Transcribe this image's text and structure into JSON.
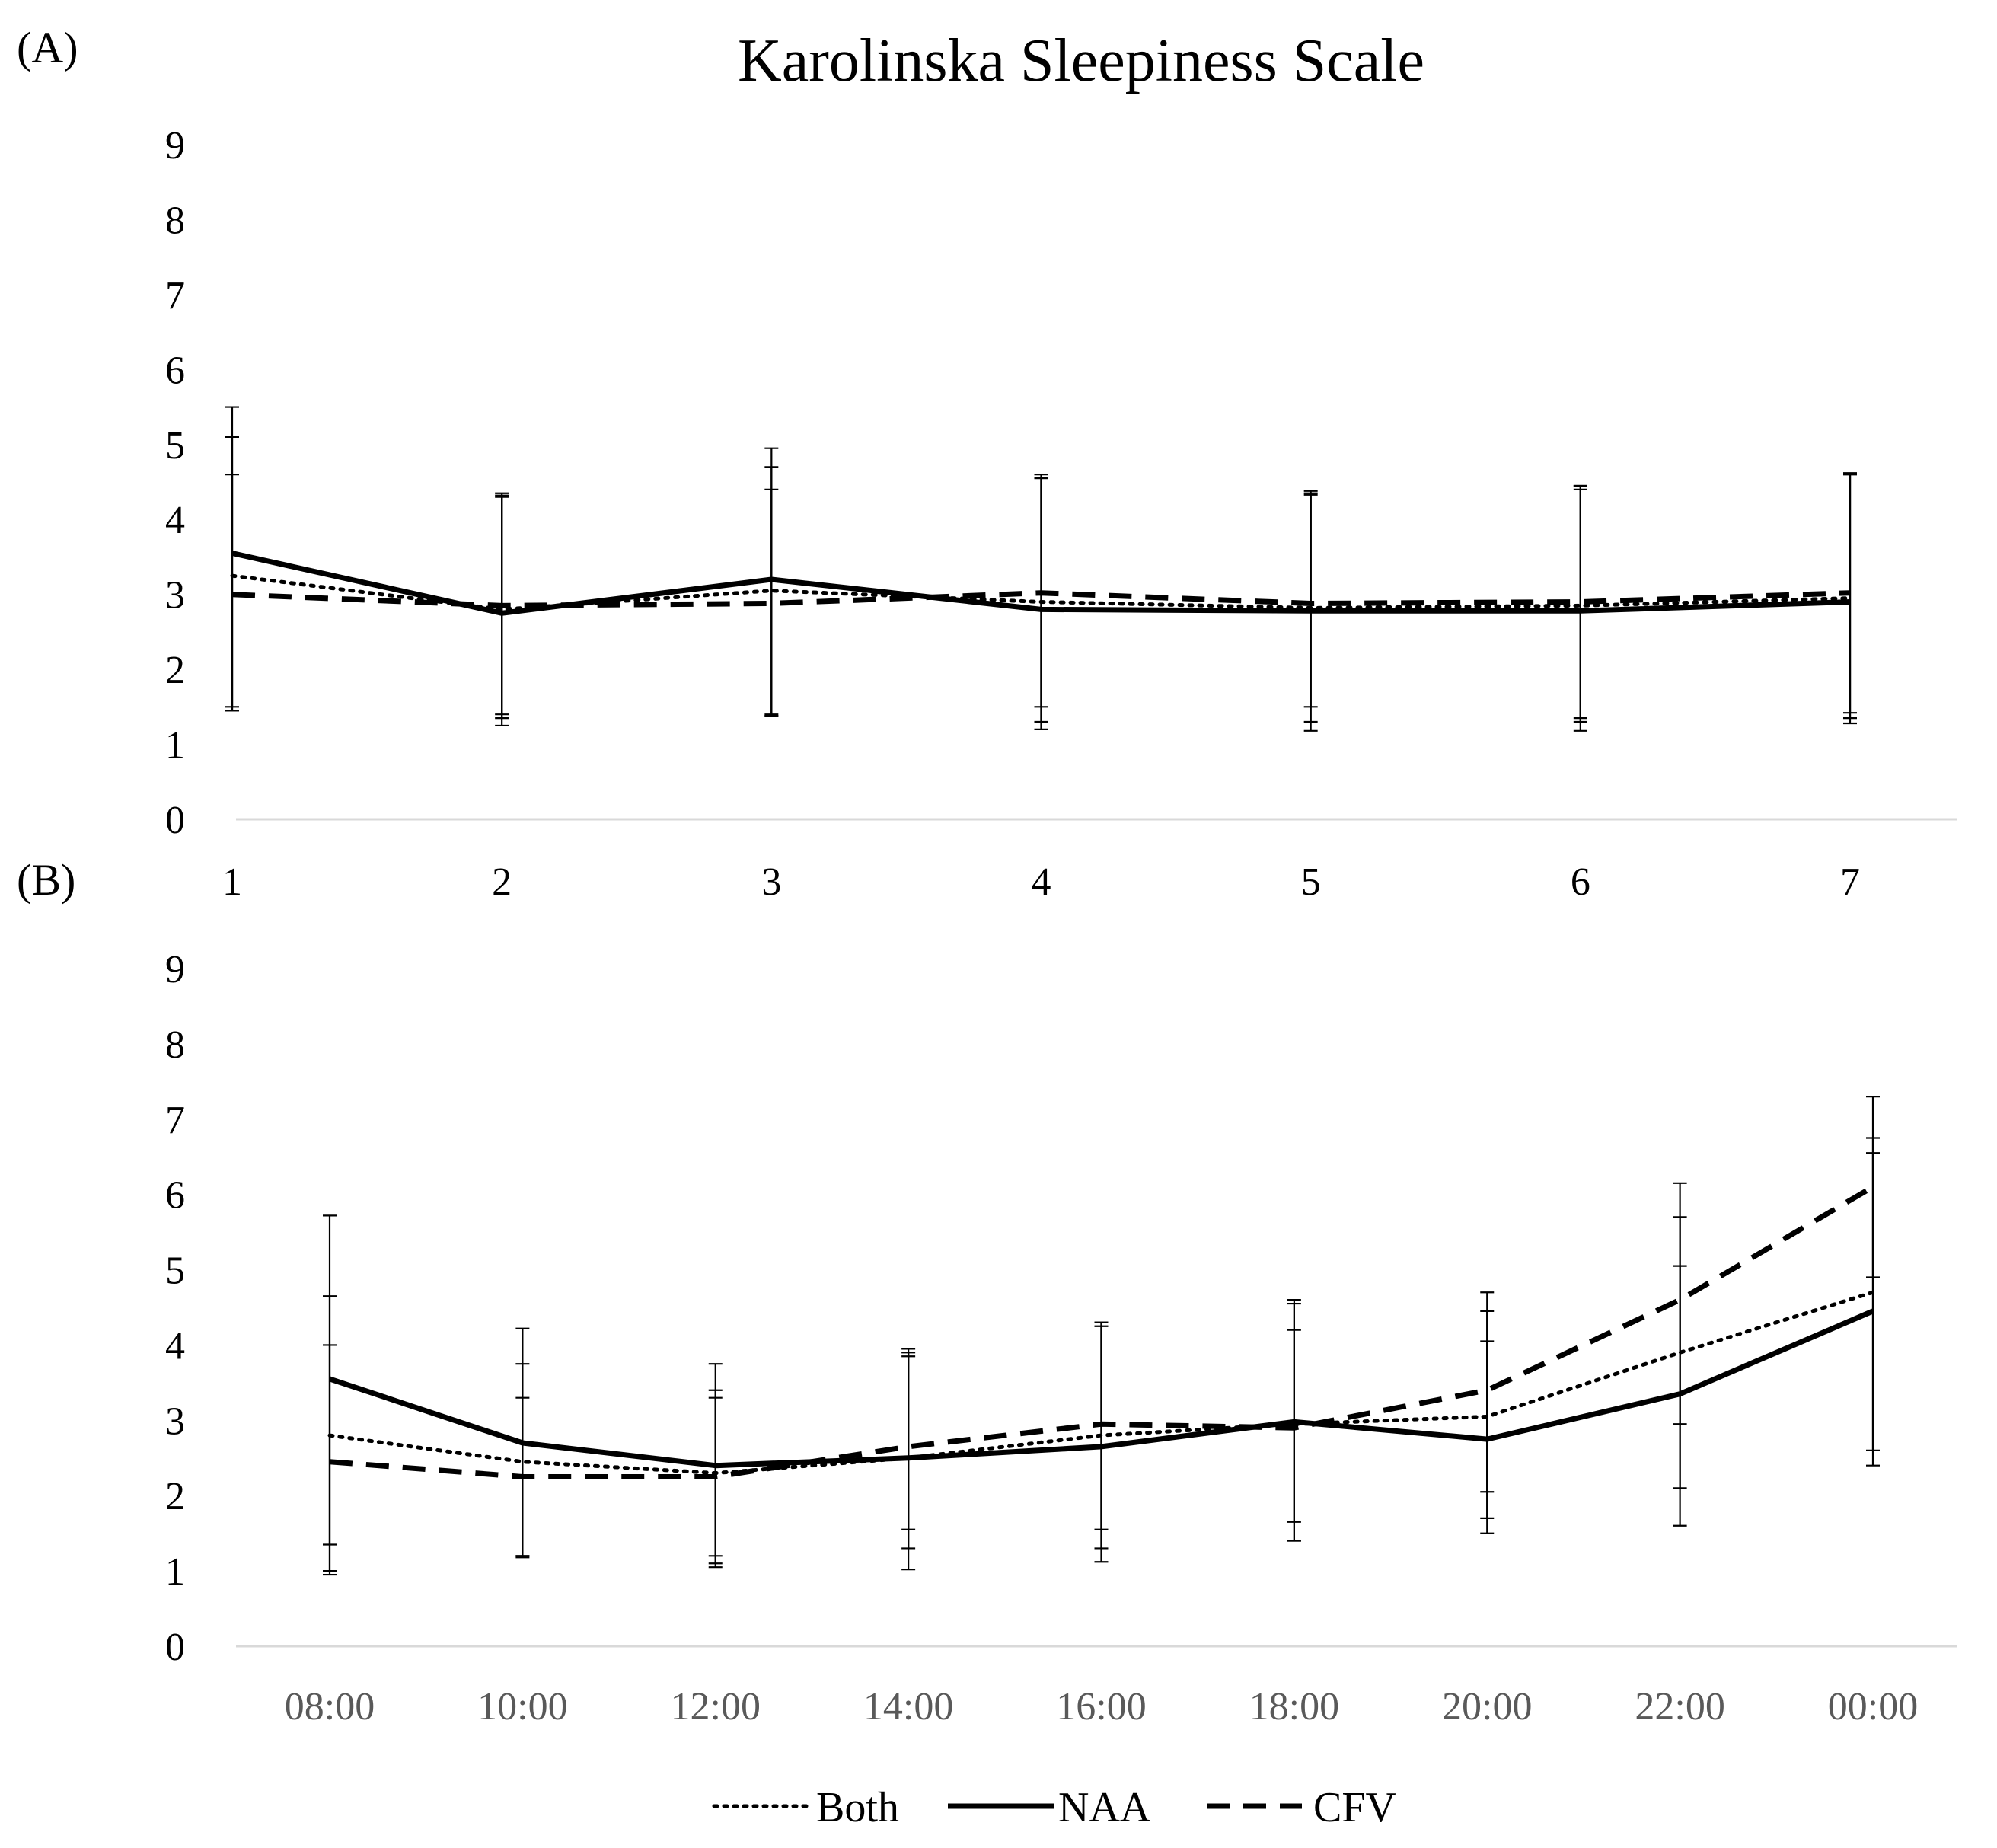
{
  "title": "Karolinska Sleepiness Scale",
  "legend": [
    {
      "label": "Both",
      "style": "dotted"
    },
    {
      "label": "NAA",
      "style": "solid"
    },
    {
      "label": "CFV",
      "style": "dashed"
    }
  ],
  "chart_data": [
    {
      "panel": "(A)",
      "type": "line",
      "title": "Karolinska Sleepiness Scale",
      "xlabel": "",
      "ylabel": "",
      "ylim": [
        0,
        9
      ],
      "yticks": [
        "0",
        "1",
        "2",
        "3",
        "4",
        "5",
        "6",
        "7",
        "8",
        "9"
      ],
      "categories": [
        "1",
        "2",
        "3",
        "4",
        "5",
        "6",
        "7"
      ],
      "series": [
        {
          "name": "Both",
          "style": "dotted",
          "values": [
            3.25,
            2.8,
            3.05,
            2.9,
            2.82,
            2.85,
            2.95
          ],
          "err_low": [
            1.45,
            1.35,
            1.4,
            1.3,
            1.3,
            1.3,
            1.35
          ],
          "err_high": [
            5.1,
            4.3,
            4.7,
            4.55,
            4.35,
            4.4,
            4.6
          ]
        },
        {
          "name": "NAA",
          "style": "solid",
          "values": [
            3.55,
            2.75,
            3.2,
            2.8,
            2.78,
            2.78,
            2.9
          ],
          "err_low": [
            1.5,
            1.25,
            1.38,
            1.2,
            1.18,
            1.18,
            1.28
          ],
          "err_high": [
            5.5,
            4.35,
            4.95,
            4.6,
            4.38,
            4.45,
            4.62
          ]
        },
        {
          "name": "CFV",
          "style": "dashed",
          "values": [
            3.0,
            2.85,
            2.88,
            3.02,
            2.88,
            2.9,
            3.02
          ],
          "err_low": [
            1.45,
            1.4,
            1.38,
            1.5,
            1.5,
            1.35,
            1.42
          ],
          "err_high": [
            4.6,
            4.32,
            4.4,
            4.55,
            4.33,
            4.45,
            4.6
          ]
        }
      ]
    },
    {
      "panel": "(B)",
      "type": "line",
      "title": "",
      "xlabel": "",
      "ylabel": "",
      "ylim": [
        0,
        9
      ],
      "yticks": [
        "0",
        "1",
        "2",
        "3",
        "4",
        "5",
        "6",
        "7",
        "8",
        "9"
      ],
      "categories": [
        "08:00",
        "10:00",
        "12:00",
        "14:00",
        "16:00",
        "18:00",
        "20:00",
        "22:00",
        "00:00"
      ],
      "series": [
        {
          "name": "Both",
          "style": "dotted",
          "values": [
            2.8,
            2.45,
            2.3,
            2.5,
            2.8,
            2.95,
            3.05,
            3.9,
            4.7
          ],
          "err_low": [
            1.0,
            1.2,
            1.1,
            1.3,
            1.3,
            1.4,
            1.7,
            1.6,
            2.6
          ],
          "err_high": [
            4.65,
            3.75,
            3.4,
            3.85,
            4.25,
            4.55,
            4.45,
            5.7,
            6.75
          ]
        },
        {
          "name": "NAA",
          "style": "solid",
          "values": [
            3.55,
            2.7,
            2.4,
            2.5,
            2.65,
            2.98,
            2.75,
            3.35,
            4.45
          ],
          "err_low": [
            1.35,
            1.2,
            1.05,
            1.02,
            1.12,
            1.4,
            1.5,
            2.1,
            2.4
          ],
          "err_high": [
            5.72,
            4.22,
            3.75,
            3.95,
            4.3,
            4.6,
            4.7,
            6.15,
            7.3
          ]
        },
        {
          "name": "CFV",
          "style": "dashed",
          "values": [
            2.45,
            2.25,
            2.25,
            2.65,
            2.95,
            2.9,
            3.4,
            4.6,
            6.1
          ],
          "err_low": [
            0.95,
            1.18,
            1.2,
            1.55,
            1.55,
            1.65,
            2.05,
            2.95,
            4.9
          ],
          "err_high": [
            4.0,
            3.3,
            3.3,
            3.9,
            4.3,
            4.2,
            4.05,
            5.05,
            6.55
          ]
        }
      ]
    }
  ]
}
